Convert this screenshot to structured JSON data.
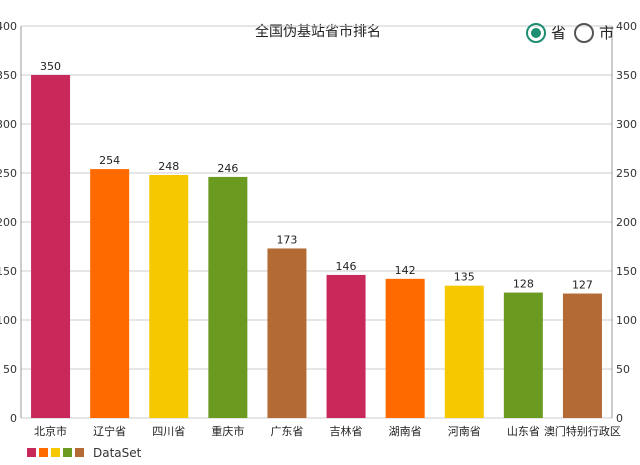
{
  "chart_data": {
    "type": "bar",
    "title": "全国伪基站省市排名",
    "categories": [
      "北京市",
      "辽宁省",
      "四川省",
      "重庆市",
      "广东省",
      "吉林省",
      "湖南省",
      "河南省",
      "山东省",
      "澳门特别行政区"
    ],
    "values": [
      350,
      254,
      248,
      246,
      173,
      146,
      142,
      135,
      128,
      127
    ],
    "colors": [
      "#c8285a",
      "#ff6a00",
      "#f5c800",
      "#6a9a1f",
      "#b36a35",
      "#c8285a",
      "#ff6a00",
      "#f5c800",
      "#6a9a1f",
      "#b36a35"
    ],
    "ylim": [
      0,
      400
    ],
    "yticks": [
      0,
      50,
      100,
      150,
      200,
      250,
      300,
      350,
      400
    ],
    "grid": true,
    "legend": {
      "position": "bottom-left",
      "label": "DataSet",
      "swatches": [
        "#c8285a",
        "#ff6a00",
        "#f5c800",
        "#6a9a1f",
        "#b36a35"
      ]
    }
  },
  "toggle": {
    "options": [
      {
        "label": "省",
        "selected": true
      },
      {
        "label": "市",
        "selected": false
      }
    ],
    "accent": "#1e8e72"
  }
}
